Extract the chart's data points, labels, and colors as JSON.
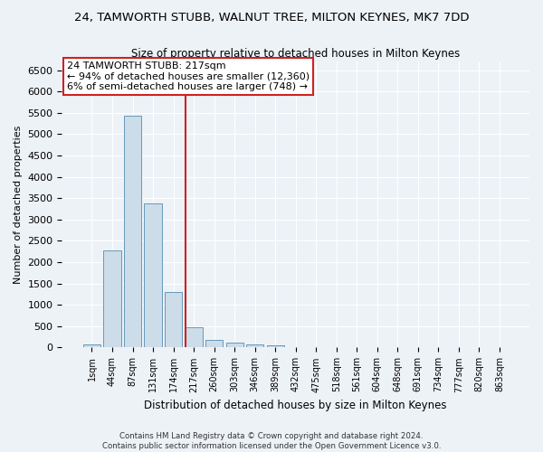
{
  "title": "24, TAMWORTH STUBB, WALNUT TREE, MILTON KEYNES, MK7 7DD",
  "subtitle": "Size of property relative to detached houses in Milton Keynes",
  "xlabel": "Distribution of detached houses by size in Milton Keynes",
  "ylabel": "Number of detached properties",
  "footer_line1": "Contains HM Land Registry data © Crown copyright and database right 2024.",
  "footer_line2": "Contains public sector information licensed under the Open Government Licence v3.0.",
  "annotation_line1": "24 TAMWORTH STUBB: 217sqm",
  "annotation_line2": "← 94% of detached houses are smaller (12,360)",
  "annotation_line3": "6% of semi-detached houses are larger (748) →",
  "bar_color": "#ccdce8",
  "bar_edgecolor": "#6699bb",
  "highlight_color": "#cc2222",
  "categories": [
    "1sqm",
    "44sqm",
    "87sqm",
    "131sqm",
    "174sqm",
    "217sqm",
    "260sqm",
    "303sqm",
    "346sqm",
    "389sqm",
    "432sqm",
    "475sqm",
    "518sqm",
    "561sqm",
    "604sqm",
    "648sqm",
    "691sqm",
    "734sqm",
    "777sqm",
    "820sqm",
    "863sqm"
  ],
  "values": [
    80,
    2280,
    5430,
    3380,
    1310,
    480,
    170,
    110,
    80,
    50,
    0,
    0,
    0,
    0,
    0,
    0,
    0,
    0,
    0,
    0,
    0
  ],
  "ylim": [
    0,
    6700
  ],
  "yticks": [
    0,
    500,
    1000,
    1500,
    2000,
    2500,
    3000,
    3500,
    4000,
    4500,
    5000,
    5500,
    6000,
    6500
  ],
  "background_color": "#edf2f7",
  "plot_background": "#edf2f7",
  "grid_color": "#ffffff",
  "red_line_bin": 5
}
